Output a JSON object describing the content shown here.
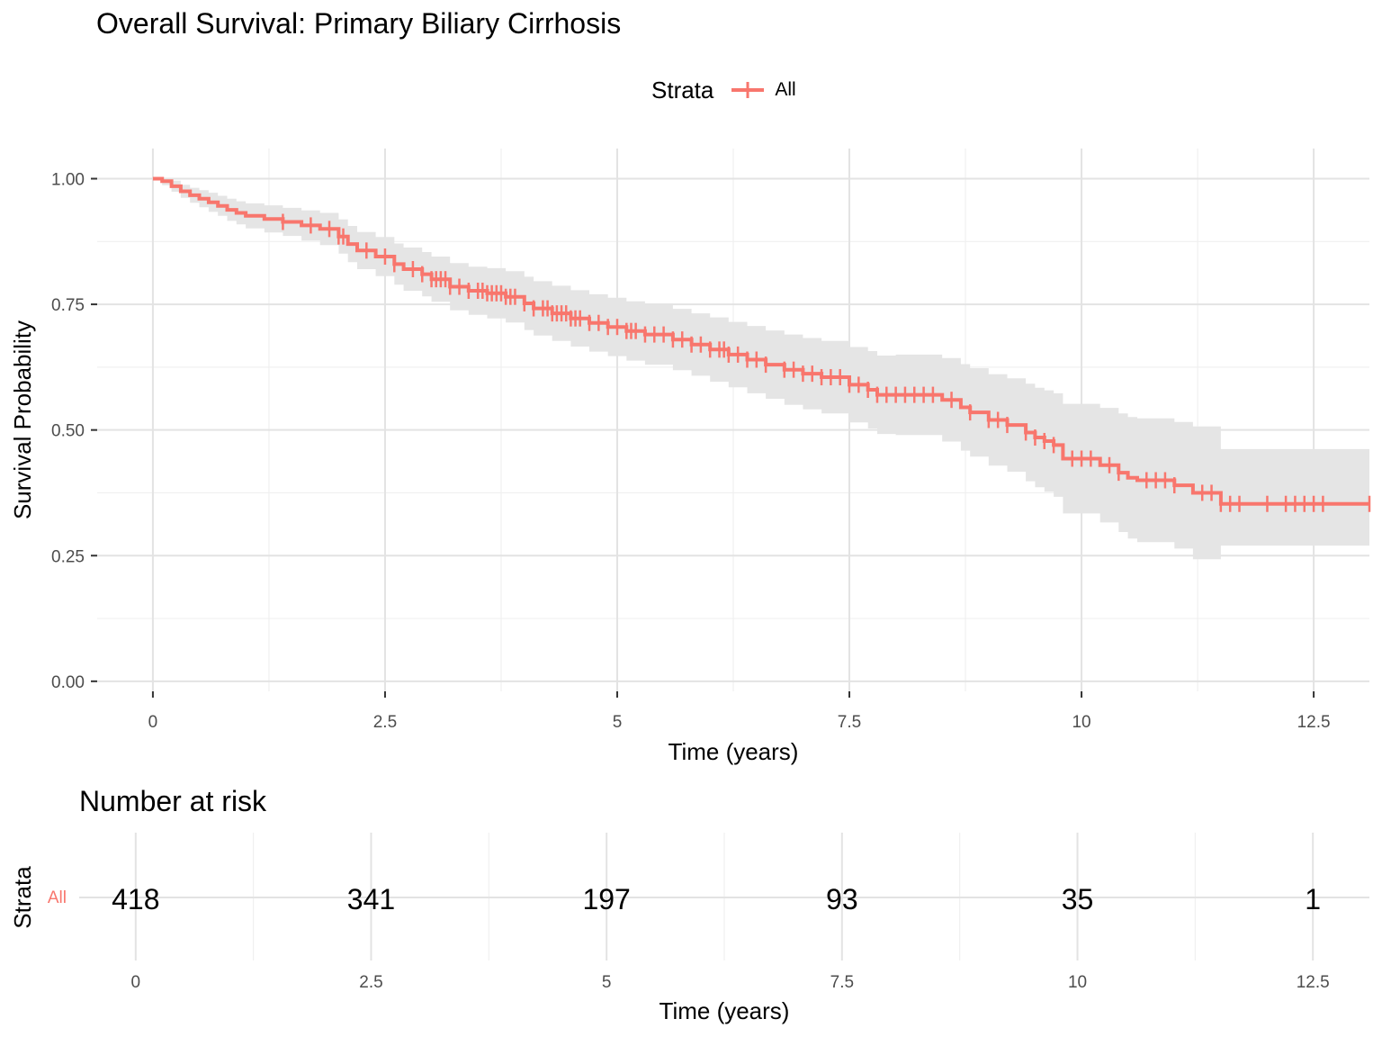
{
  "title": "Overall Survival: Primary Biliary Cirrhosis",
  "legend": {
    "title": "Strata",
    "label": "All"
  },
  "colors": {
    "curve": "#F8766D",
    "band": "#E5E5E5",
    "grid_major": "#E3E3E3",
    "grid_minor": "#F0F0F0",
    "text": "#000000",
    "tick_text": "#4D4D4D"
  },
  "chart_data": [
    {
      "type": "line",
      "subtype": "kaplan-meier",
      "title": "Overall Survival: Primary Biliary Cirrhosis",
      "xlabel": "Time (years)",
      "ylabel": "Survival Probability",
      "xlim": [
        -0.6,
        13.1
      ],
      "ylim": [
        -0.02,
        1.06
      ],
      "xticks": [
        0,
        2.5,
        5,
        7.5,
        10,
        12.5
      ],
      "xtick_labels": [
        "0",
        "2.5",
        "5",
        "7.5",
        "10",
        "12.5"
      ],
      "yticks": [
        0,
        0.25,
        0.5,
        0.75,
        1.0
      ],
      "ytick_labels": [
        "0.00",
        "0.25",
        "0.50",
        "0.75",
        "1.00"
      ],
      "grid": true,
      "legend_position": "top",
      "series": [
        {
          "name": "All",
          "x": [
            0,
            0.1,
            0.2,
            0.3,
            0.4,
            0.5,
            0.6,
            0.7,
            0.8,
            0.9,
            1.0,
            1.2,
            1.4,
            1.6,
            1.8,
            2.0,
            2.1,
            2.2,
            2.4,
            2.6,
            2.7,
            2.9,
            3.0,
            3.2,
            3.4,
            3.6,
            3.8,
            4.0,
            4.1,
            4.3,
            4.5,
            4.7,
            4.9,
            5.1,
            5.3,
            5.6,
            5.8,
            6.0,
            6.2,
            6.4,
            6.6,
            6.8,
            7.0,
            7.2,
            7.5,
            7.7,
            7.8,
            8.0,
            8.5,
            8.7,
            8.8,
            9.0,
            9.2,
            9.4,
            9.5,
            9.6,
            9.7,
            9.8,
            10.2,
            10.4,
            10.5,
            10.6,
            11.0,
            11.2,
            11.5,
            13.1
          ],
          "y": [
            1.0,
            0.995,
            0.985,
            0.975,
            0.967,
            0.96,
            0.953,
            0.946,
            0.938,
            0.932,
            0.926,
            0.92,
            0.914,
            0.907,
            0.9,
            0.885,
            0.87,
            0.857,
            0.845,
            0.83,
            0.82,
            0.81,
            0.8,
            0.785,
            0.777,
            0.772,
            0.765,
            0.752,
            0.742,
            0.732,
            0.722,
            0.713,
            0.705,
            0.697,
            0.69,
            0.68,
            0.67,
            0.66,
            0.65,
            0.64,
            0.63,
            0.62,
            0.612,
            0.605,
            0.59,
            0.58,
            0.57,
            0.57,
            0.56,
            0.545,
            0.535,
            0.52,
            0.51,
            0.495,
            0.485,
            0.478,
            0.47,
            0.443,
            0.43,
            0.415,
            0.405,
            0.4,
            0.39,
            0.375,
            0.353,
            0.353
          ],
          "lower": [
            1.0,
            0.987,
            0.974,
            0.962,
            0.952,
            0.943,
            0.934,
            0.926,
            0.916,
            0.909,
            0.901,
            0.893,
            0.886,
            0.877,
            0.868,
            0.851,
            0.834,
            0.82,
            0.806,
            0.789,
            0.777,
            0.766,
            0.755,
            0.738,
            0.729,
            0.722,
            0.714,
            0.699,
            0.688,
            0.677,
            0.666,
            0.656,
            0.647,
            0.638,
            0.63,
            0.619,
            0.608,
            0.596,
            0.585,
            0.573,
            0.562,
            0.55,
            0.541,
            0.533,
            0.515,
            0.503,
            0.492,
            0.49,
            0.477,
            0.459,
            0.447,
            0.429,
            0.417,
            0.398,
            0.386,
            0.377,
            0.367,
            0.334,
            0.316,
            0.297,
            0.284,
            0.277,
            0.264,
            0.243,
            0.27,
            0.27
          ],
          "upper": [
            1.0,
            1.0,
            0.996,
            0.988,
            0.982,
            0.977,
            0.972,
            0.966,
            0.96,
            0.955,
            0.951,
            0.947,
            0.942,
            0.937,
            0.932,
            0.919,
            0.906,
            0.894,
            0.884,
            0.871,
            0.863,
            0.854,
            0.845,
            0.832,
            0.825,
            0.822,
            0.816,
            0.805,
            0.796,
            0.787,
            0.778,
            0.77,
            0.763,
            0.756,
            0.75,
            0.741,
            0.732,
            0.724,
            0.715,
            0.707,
            0.698,
            0.69,
            0.683,
            0.677,
            0.665,
            0.657,
            0.648,
            0.65,
            0.643,
            0.631,
            0.623,
            0.611,
            0.603,
            0.592,
            0.584,
            0.579,
            0.573,
            0.552,
            0.544,
            0.533,
            0.526,
            0.523,
            0.516,
            0.507,
            0.462,
            0.462
          ],
          "censor_times": [
            1.4,
            1.7,
            1.9,
            2.0,
            2.05,
            2.3,
            2.5,
            2.6,
            2.8,
            2.9,
            3.0,
            3.05,
            3.1,
            3.15,
            3.2,
            3.3,
            3.4,
            3.5,
            3.55,
            3.6,
            3.65,
            3.7,
            3.75,
            3.8,
            3.85,
            3.9,
            4.0,
            4.1,
            4.2,
            4.25,
            4.3,
            4.35,
            4.4,
            4.45,
            4.5,
            4.55,
            4.6,
            4.7,
            4.8,
            4.9,
            5.0,
            5.1,
            5.15,
            5.2,
            5.3,
            5.4,
            5.5,
            5.6,
            5.7,
            5.8,
            5.9,
            6.0,
            6.1,
            6.15,
            6.2,
            6.3,
            6.4,
            6.5,
            6.6,
            6.8,
            6.9,
            7.0,
            7.1,
            7.2,
            7.3,
            7.4,
            7.5,
            7.6,
            7.7,
            7.8,
            7.9,
            8.0,
            8.1,
            8.2,
            8.3,
            8.4,
            8.6,
            8.8,
            9.0,
            9.1,
            9.2,
            9.4,
            9.5,
            9.6,
            9.7,
            9.9,
            10.0,
            10.1,
            10.3,
            10.4,
            10.7,
            10.8,
            10.9,
            11.0,
            11.3,
            11.4,
            11.5,
            11.6,
            11.7,
            12.0,
            12.2,
            12.3,
            12.4,
            12.5,
            12.6,
            13.1
          ]
        }
      ]
    },
    {
      "type": "table",
      "title": "Number at risk",
      "ylabel": "Strata",
      "xlabel": "Time (years)",
      "xlim": [
        -0.6,
        13.1
      ],
      "xticks": [
        0,
        2.5,
        5,
        7.5,
        10,
        12.5
      ],
      "xtick_labels": [
        "0",
        "2.5",
        "5",
        "7.5",
        "10",
        "12.5"
      ],
      "rows": [
        {
          "strata": "All",
          "times": [
            0,
            2.5,
            5,
            7.5,
            10,
            12.5
          ],
          "values": [
            "418",
            "341",
            "197",
            "93",
            "35",
            "1"
          ]
        }
      ]
    }
  ]
}
